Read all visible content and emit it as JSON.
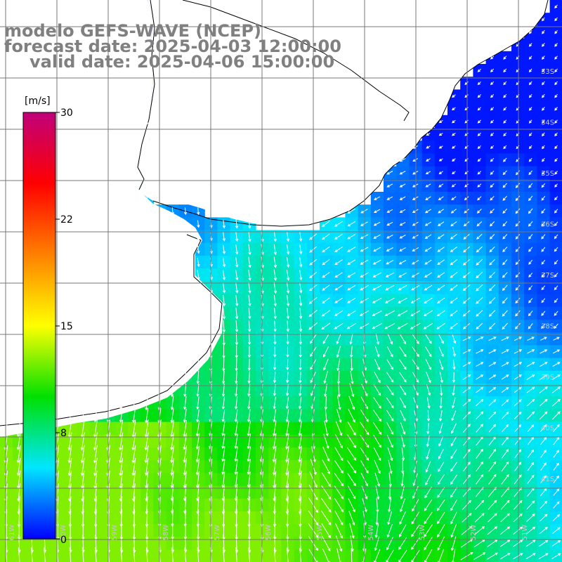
{
  "title": {
    "line1": "modelo GEFS-WAVE (NCEP)",
    "line2": "forecast date: 2025-04-03 12:00:00",
    "line3": "valid date: 2025-04-06 15:00:00"
  },
  "colorbar": {
    "unit": "[m/s]",
    "ticks": [
      "30",
      "22",
      "15",
      "8",
      "0"
    ],
    "tick_values": [
      30,
      22,
      15,
      8,
      0
    ],
    "range": [
      0,
      30
    ],
    "colors": [
      "#0000ff",
      "#00e6ff",
      "#00e000",
      "#ffff00",
      "#ff8000",
      "#ff0000",
      "#c0007a"
    ]
  },
  "lat_labels": [
    "33S",
    "34S",
    "35S",
    "36S",
    "37S",
    "38S",
    "39S",
    "40S",
    "41S"
  ],
  "lon_labels": [
    "61W",
    "60W",
    "59W",
    "58W",
    "57W",
    "56W",
    "55W",
    "54W",
    "53W",
    "52W",
    "51W"
  ],
  "colors": {
    "land": "#ffffff",
    "coast": "#000000",
    "grid": "#777777",
    "arrow": "#ffffff",
    "title": "#808080"
  }
}
